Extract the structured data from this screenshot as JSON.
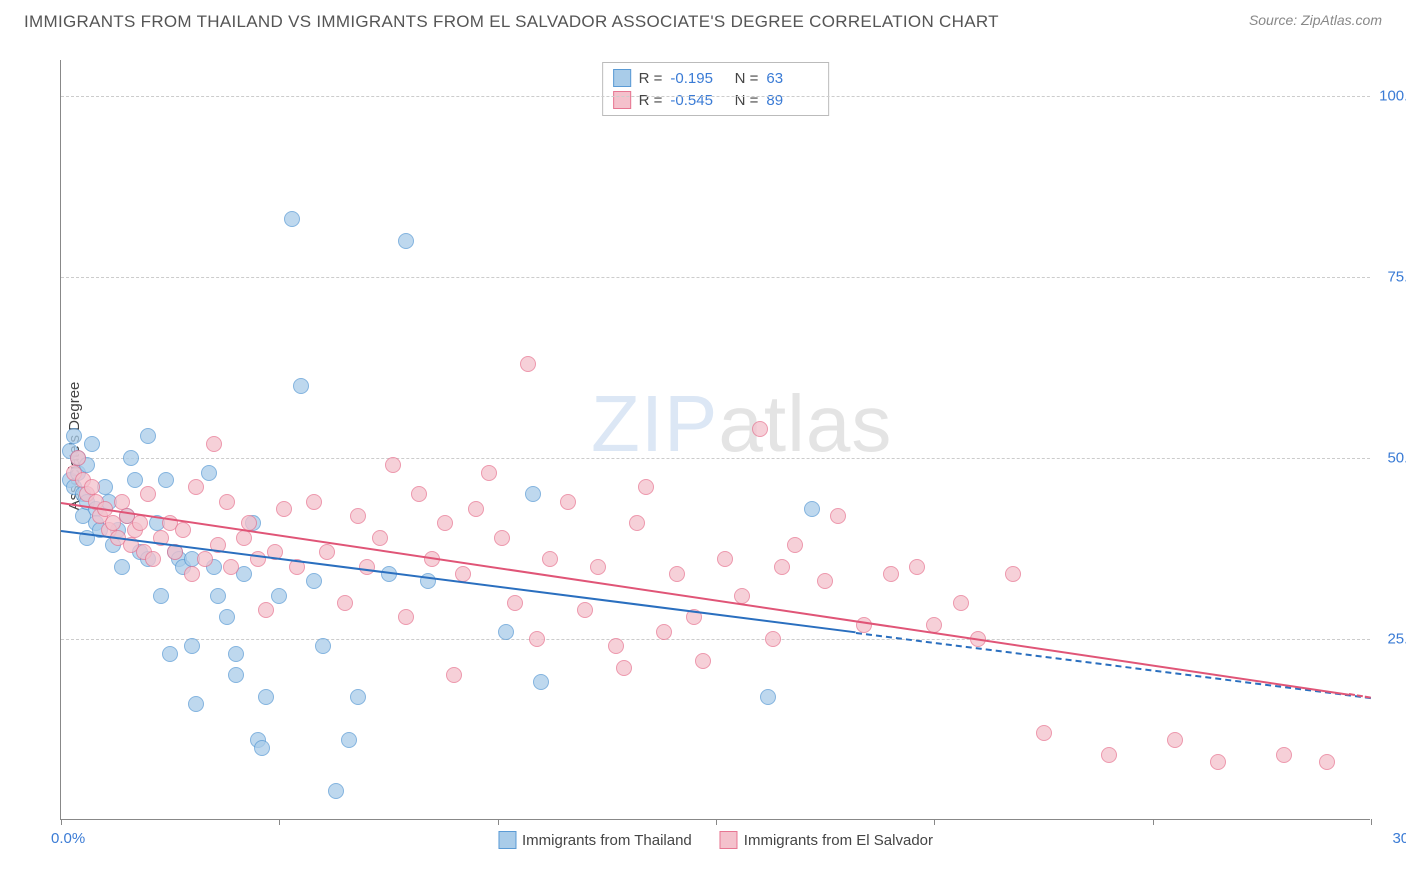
{
  "title": "IMMIGRANTS FROM THAILAND VS IMMIGRANTS FROM EL SALVADOR ASSOCIATE'S DEGREE CORRELATION CHART",
  "source": "Source: ZipAtlas.com",
  "y_axis_label": "Associate's Degree",
  "watermark_a": "ZIP",
  "watermark_b": "atlas",
  "chart": {
    "type": "scatter",
    "xmin": 0,
    "xmax": 30,
    "ymin": 0,
    "ymax": 105,
    "x_tick_positions": [
      0,
      5,
      10,
      15,
      20,
      25,
      30
    ],
    "x_left_label": "0.0%",
    "x_right_label": "30.0%",
    "y_ticks": [
      {
        "v": 25,
        "label": "25.0%"
      },
      {
        "v": 50,
        "label": "50.0%"
      },
      {
        "v": 75,
        "label": "75.0%"
      },
      {
        "v": 100,
        "label": "100.0%"
      }
    ],
    "grid_color": "#cccccc",
    "background_color": "#ffffff",
    "series": [
      {
        "name": "Immigrants from Thailand",
        "fill": "#a9cce9",
        "stroke": "#5b9bd5",
        "line_color": "#2a6fbf",
        "R": "-0.195",
        "N": "63",
        "trend": {
          "x1": 0,
          "y1": 40,
          "x2": 18.2,
          "y2": 26,
          "dash_x2": 30,
          "dash_y2": 17
        },
        "points": [
          [
            0.2,
            47
          ],
          [
            0.2,
            51
          ],
          [
            0.3,
            53
          ],
          [
            0.3,
            46
          ],
          [
            0.4,
            50
          ],
          [
            0.4,
            48
          ],
          [
            0.5,
            45
          ],
          [
            0.5,
            42
          ],
          [
            0.6,
            49
          ],
          [
            0.6,
            44
          ],
          [
            0.6,
            39
          ],
          [
            0.7,
            52
          ],
          [
            0.8,
            43
          ],
          [
            0.8,
            41
          ],
          [
            0.9,
            40
          ],
          [
            1.0,
            46
          ],
          [
            1.1,
            44
          ],
          [
            1.2,
            38
          ],
          [
            1.3,
            40
          ],
          [
            1.4,
            35
          ],
          [
            1.5,
            42
          ],
          [
            1.6,
            50
          ],
          [
            1.7,
            47
          ],
          [
            1.8,
            37
          ],
          [
            2.0,
            36
          ],
          [
            2.0,
            53
          ],
          [
            2.2,
            41
          ],
          [
            2.3,
            31
          ],
          [
            2.4,
            47
          ],
          [
            2.5,
            23
          ],
          [
            2.6,
            37
          ],
          [
            2.7,
            36
          ],
          [
            2.8,
            35
          ],
          [
            3.0,
            36
          ],
          [
            3.0,
            24
          ],
          [
            3.1,
            16
          ],
          [
            3.4,
            48
          ],
          [
            3.5,
            35
          ],
          [
            3.6,
            31
          ],
          [
            3.8,
            28
          ],
          [
            4.0,
            20
          ],
          [
            4.0,
            23
          ],
          [
            4.2,
            34
          ],
          [
            4.4,
            41
          ],
          [
            4.5,
            11
          ],
          [
            4.6,
            10
          ],
          [
            4.7,
            17
          ],
          [
            5.0,
            31
          ],
          [
            5.3,
            83
          ],
          [
            5.5,
            60
          ],
          [
            5.8,
            33
          ],
          [
            6.0,
            24
          ],
          [
            6.3,
            4
          ],
          [
            6.6,
            11
          ],
          [
            6.8,
            17
          ],
          [
            7.5,
            34
          ],
          [
            7.9,
            80
          ],
          [
            8.4,
            33
          ],
          [
            10.2,
            26
          ],
          [
            10.8,
            45
          ],
          [
            11.0,
            19
          ],
          [
            16.2,
            17
          ],
          [
            17.2,
            43
          ]
        ]
      },
      {
        "name": "Immigrants from El Salvador",
        "fill": "#f4c1cc",
        "stroke": "#e77692",
        "line_color": "#e05577",
        "R": "-0.545",
        "N": "89",
        "trend": {
          "x1": 0,
          "y1": 44,
          "x2": 29.5,
          "y2": 17.5,
          "dash_x2": 30,
          "dash_y2": 17
        },
        "points": [
          [
            0.3,
            48
          ],
          [
            0.4,
            50
          ],
          [
            0.5,
            47
          ],
          [
            0.6,
            45
          ],
          [
            0.7,
            46
          ],
          [
            0.8,
            44
          ],
          [
            0.9,
            42
          ],
          [
            1.0,
            43
          ],
          [
            1.1,
            40
          ],
          [
            1.2,
            41
          ],
          [
            1.3,
            39
          ],
          [
            1.4,
            44
          ],
          [
            1.5,
            42
          ],
          [
            1.6,
            38
          ],
          [
            1.7,
            40
          ],
          [
            1.8,
            41
          ],
          [
            1.9,
            37
          ],
          [
            2.0,
            45
          ],
          [
            2.1,
            36
          ],
          [
            2.3,
            39
          ],
          [
            2.5,
            41
          ],
          [
            2.6,
            37
          ],
          [
            2.8,
            40
          ],
          [
            3.0,
            34
          ],
          [
            3.1,
            46
          ],
          [
            3.3,
            36
          ],
          [
            3.5,
            52
          ],
          [
            3.6,
            38
          ],
          [
            3.8,
            44
          ],
          [
            3.9,
            35
          ],
          [
            4.2,
            39
          ],
          [
            4.3,
            41
          ],
          [
            4.5,
            36
          ],
          [
            4.7,
            29
          ],
          [
            4.9,
            37
          ],
          [
            5.1,
            43
          ],
          [
            5.4,
            35
          ],
          [
            5.8,
            44
          ],
          [
            6.1,
            37
          ],
          [
            6.5,
            30
          ],
          [
            6.8,
            42
          ],
          [
            7.0,
            35
          ],
          [
            7.3,
            39
          ],
          [
            7.6,
            49
          ],
          [
            7.9,
            28
          ],
          [
            8.2,
            45
          ],
          [
            8.5,
            36
          ],
          [
            8.8,
            41
          ],
          [
            9.0,
            20
          ],
          [
            9.2,
            34
          ],
          [
            9.5,
            43
          ],
          [
            9.8,
            48
          ],
          [
            10.1,
            39
          ],
          [
            10.4,
            30
          ],
          [
            10.7,
            63
          ],
          [
            10.9,
            25
          ],
          [
            11.2,
            36
          ],
          [
            11.6,
            44
          ],
          [
            12.0,
            29
          ],
          [
            12.3,
            35
          ],
          [
            12.7,
            24
          ],
          [
            12.9,
            21
          ],
          [
            13.2,
            41
          ],
          [
            13.4,
            46
          ],
          [
            13.8,
            26
          ],
          [
            14.1,
            34
          ],
          [
            14.5,
            28
          ],
          [
            14.7,
            22
          ],
          [
            15.2,
            36
          ],
          [
            15.6,
            31
          ],
          [
            16.0,
            54
          ],
          [
            16.3,
            25
          ],
          [
            16.5,
            35
          ],
          [
            16.8,
            38
          ],
          [
            17.5,
            33
          ],
          [
            17.8,
            42
          ],
          [
            18.4,
            27
          ],
          [
            19.0,
            34
          ],
          [
            19.6,
            35
          ],
          [
            20.0,
            27
          ],
          [
            20.6,
            30
          ],
          [
            21.0,
            25
          ],
          [
            21.8,
            34
          ],
          [
            22.5,
            12
          ],
          [
            24.0,
            9
          ],
          [
            25.5,
            11
          ],
          [
            26.5,
            8
          ],
          [
            28.0,
            9
          ],
          [
            29.0,
            8
          ]
        ]
      }
    ]
  }
}
